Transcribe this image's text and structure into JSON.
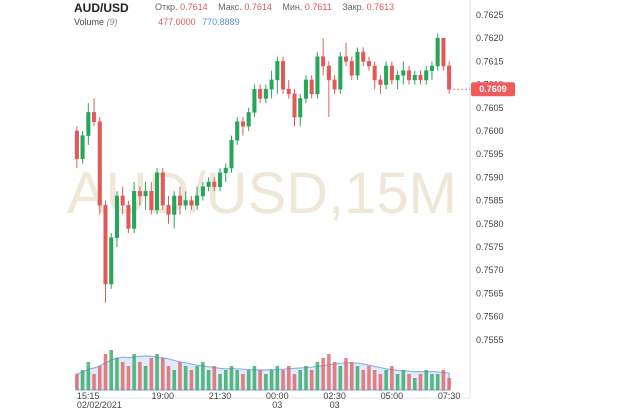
{
  "header": {
    "symbol": "AUD/USD",
    "open_label": "Откр.",
    "open_value": "0.7614",
    "high_label": "Макс.",
    "high_value": "0.7614",
    "low_label": "Мин.",
    "low_value": "0.7611",
    "close_label": "Закр.",
    "close_value": "0.7613",
    "volume_label": "Volume",
    "volume_period": "(9)",
    "volume_value": "477.0000",
    "volume_ma": "770.8889"
  },
  "watermark": "AUD/USD,15M",
  "colors": {
    "up": "#26a65b",
    "down": "#e05a5a",
    "vol_ma": "#8fb3e6",
    "badge": "#f05a5a"
  },
  "current_price": "0.7609",
  "chart_data": {
    "type": "candlestick",
    "title": "AUD/USD",
    "timeframe": "15M",
    "ylim": [
      0.75515,
      0.76265
    ],
    "y_ticks": [
      "0.7625",
      "0.7620",
      "0.7615",
      "0.7610",
      "0.7605",
      "0.7600",
      "0.7595",
      "0.7590",
      "0.7585",
      "0.7580",
      "0.7575",
      "0.7570",
      "0.7565",
      "0.7560",
      "0.7555"
    ],
    "x_ticks": [
      {
        "label": "15:15",
        "sub": "02/02/2021",
        "index": 0
      },
      {
        "label": "19:00",
        "sub": "",
        "index": 15
      },
      {
        "label": "21:30",
        "sub": "",
        "index": 25
      },
      {
        "label": "00:00",
        "sub": "03",
        "index": 35
      },
      {
        "label": "02:30",
        "sub": "03",
        "index": 45
      },
      {
        "label": "05:00",
        "sub": "",
        "index": 55
      },
      {
        "label": "07:30",
        "sub": "",
        "index": 65
      }
    ],
    "candles": [
      [
        0.76,
        0.7601,
        0.7592,
        0.7594
      ],
      [
        0.7594,
        0.76,
        0.7593,
        0.7599
      ],
      [
        0.7599,
        0.7606,
        0.7597,
        0.7604
      ],
      [
        0.7604,
        0.7607,
        0.7601,
        0.7602
      ],
      [
        0.7602,
        0.7603,
        0.7582,
        0.7584
      ],
      [
        0.7584,
        0.7585,
        0.7563,
        0.7567
      ],
      [
        0.7567,
        0.7578,
        0.7566,
        0.7577
      ],
      [
        0.7577,
        0.7587,
        0.7575,
        0.7586
      ],
      [
        0.7586,
        0.7588,
        0.7582,
        0.7584
      ],
      [
        0.7584,
        0.7585,
        0.7578,
        0.7579
      ],
      [
        0.7579,
        0.7589,
        0.7578,
        0.7587
      ],
      [
        0.7587,
        0.7588,
        0.7584,
        0.7586
      ],
      [
        0.7586,
        0.7589,
        0.7583,
        0.7587
      ],
      [
        0.7587,
        0.7589,
        0.7582,
        0.7583
      ],
      [
        0.7583,
        0.7592,
        0.7582,
        0.7591
      ],
      [
        0.7591,
        0.7592,
        0.7583,
        0.7584
      ],
      [
        0.7584,
        0.7586,
        0.758,
        0.7582
      ],
      [
        0.7582,
        0.7587,
        0.7579,
        0.7586
      ],
      [
        0.7586,
        0.7588,
        0.7582,
        0.7584
      ],
      [
        0.7584,
        0.7587,
        0.7583,
        0.7585
      ],
      [
        0.7585,
        0.7586,
        0.7583,
        0.7584
      ],
      [
        0.7584,
        0.7588,
        0.7583,
        0.7586
      ],
      [
        0.7586,
        0.7589,
        0.7585,
        0.7588
      ],
      [
        0.7588,
        0.759,
        0.7587,
        0.7589
      ],
      [
        0.7589,
        0.759,
        0.7587,
        0.7588
      ],
      [
        0.7588,
        0.7592,
        0.7587,
        0.7591
      ],
      [
        0.7591,
        0.7593,
        0.7589,
        0.7592
      ],
      [
        0.7592,
        0.7599,
        0.7591,
        0.7598
      ],
      [
        0.7598,
        0.7603,
        0.7597,
        0.7602
      ],
      [
        0.7602,
        0.7603,
        0.7599,
        0.7601
      ],
      [
        0.7601,
        0.7605,
        0.76,
        0.7604
      ],
      [
        0.7604,
        0.761,
        0.7603,
        0.7609
      ],
      [
        0.7609,
        0.761,
        0.7606,
        0.7607
      ],
      [
        0.7607,
        0.761,
        0.7606,
        0.7609
      ],
      [
        0.7609,
        0.7613,
        0.7607,
        0.7611
      ],
      [
        0.7611,
        0.7616,
        0.7608,
        0.7615
      ],
      [
        0.7615,
        0.7616,
        0.7608,
        0.7609
      ],
      [
        0.7609,
        0.7611,
        0.7607,
        0.7608
      ],
      [
        0.7608,
        0.7609,
        0.7601,
        0.7603
      ],
      [
        0.7603,
        0.7608,
        0.7601,
        0.7607
      ],
      [
        0.7607,
        0.7612,
        0.7606,
        0.7611
      ],
      [
        0.7611,
        0.7612,
        0.7607,
        0.7608
      ],
      [
        0.7608,
        0.7617,
        0.7607,
        0.7616
      ],
      [
        0.7616,
        0.762,
        0.7612,
        0.7614
      ],
      [
        0.7614,
        0.7615,
        0.7603,
        0.7611
      ],
      [
        0.7611,
        0.7612,
        0.7608,
        0.7609
      ],
      [
        0.7609,
        0.7617,
        0.7608,
        0.7616
      ],
      [
        0.7616,
        0.7619,
        0.7614,
        0.7615
      ],
      [
        0.7615,
        0.7616,
        0.7611,
        0.7612
      ],
      [
        0.7612,
        0.7618,
        0.7611,
        0.7617
      ],
      [
        0.7617,
        0.7618,
        0.7614,
        0.7615
      ],
      [
        0.7615,
        0.7616,
        0.7613,
        0.7614
      ],
      [
        0.7614,
        0.7615,
        0.7609,
        0.7611
      ],
      [
        0.7611,
        0.7612,
        0.7608,
        0.761
      ],
      [
        0.761,
        0.7615,
        0.7609,
        0.7614
      ],
      [
        0.7614,
        0.7615,
        0.761,
        0.7611
      ],
      [
        0.7611,
        0.7613,
        0.7609,
        0.7612
      ],
      [
        0.7612,
        0.7615,
        0.761,
        0.7613
      ],
      [
        0.7613,
        0.7614,
        0.761,
        0.7611
      ],
      [
        0.7611,
        0.7613,
        0.761,
        0.7612
      ],
      [
        0.7612,
        0.7613,
        0.761,
        0.7611
      ],
      [
        0.7611,
        0.7614,
        0.761,
        0.7613
      ],
      [
        0.7613,
        0.7615,
        0.7611,
        0.7614
      ],
      [
        0.7614,
        0.7621,
        0.7613,
        0.762
      ],
      [
        0.762,
        0.762,
        0.7613,
        0.7614
      ],
      [
        0.7614,
        0.7615,
        0.7608,
        0.7609
      ]
    ],
    "volume": [
      4,
      5,
      7,
      4,
      6,
      9,
      10,
      8,
      7,
      6,
      9,
      7,
      6,
      8,
      9,
      8,
      6,
      5,
      7,
      6,
      5,
      6,
      7,
      5,
      6,
      4,
      5,
      6,
      5,
      4,
      5,
      6,
      5,
      4,
      5,
      6,
      5,
      6,
      4,
      5,
      6,
      5,
      7,
      8,
      9,
      7,
      6,
      8,
      7,
      6,
      5,
      6,
      5,
      4,
      5,
      6,
      4,
      5,
      4,
      3,
      4,
      5,
      4,
      4,
      5,
      3
    ],
    "volume_ma": [
      4,
      4.5,
      5.2,
      5.5,
      6,
      6.8,
      7.5,
      8,
      8.2,
      8.1,
      8.2,
      8.4,
      8.5,
      8.4,
      8.2,
      8,
      7.8,
      7.4,
      7,
      6.8,
      6.5,
      6.2,
      6,
      5.8,
      5.6,
      5.4,
      5.3,
      5.3,
      5.3,
      5.2,
      5.1,
      5.1,
      5,
      5,
      5.1,
      5.1,
      5.2,
      5.3,
      5.4,
      5.5,
      5.6,
      5.7,
      5.9,
      6.1,
      6.3,
      6.5,
      6.7,
      6.8,
      6.8,
      6.7,
      6.5,
      6.2,
      5.9,
      5.6,
      5.3,
      5.1,
      4.9,
      4.8,
      4.7,
      4.6,
      4.6,
      4.6,
      4.6,
      4.5,
      4.4,
      4.2
    ]
  }
}
